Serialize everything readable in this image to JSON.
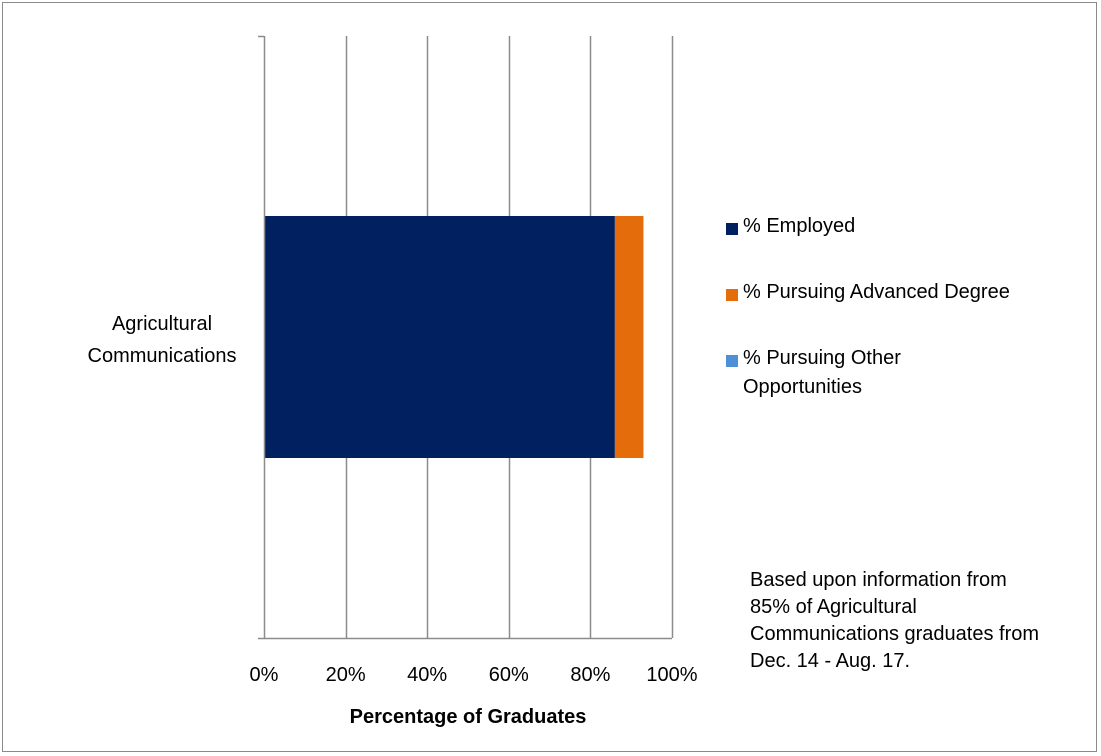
{
  "chart_data": {
    "type": "bar",
    "orientation": "horizontal",
    "stacked": true,
    "categories": [
      "Agricultural Communications"
    ],
    "category_lines": [
      "Agricultural",
      "Communications"
    ],
    "series": [
      {
        "name": "% Employed",
        "values": [
          0.86
        ],
        "color": "#002060"
      },
      {
        "name": "% Pursuing Advanced Degree",
        "values": [
          0.07
        ],
        "color": "#E46C0A"
      },
      {
        "name": "% Pursuing Other Opportunities",
        "values": [
          0
        ],
        "color": "#4F8FD6"
      }
    ],
    "xlabel": "Percentage of Graduates",
    "xlim": [
      0,
      1
    ],
    "x_ticks": [
      "0%",
      "20%",
      "40%",
      "60%",
      "80%",
      "100%"
    ],
    "grid": true,
    "legend_position": "right"
  },
  "legend": {
    "items": [
      {
        "label": "% Employed",
        "color": "#002060"
      },
      {
        "label": "% Pursuing Advanced Degree",
        "color": "#E46C0A"
      },
      {
        "label": "% Pursuing Other Opportunities",
        "color": "#4F8FD6"
      }
    ]
  },
  "note": "Based upon information from  85% of Agricultural Communications graduates from Dec. 14 - Aug. 17."
}
